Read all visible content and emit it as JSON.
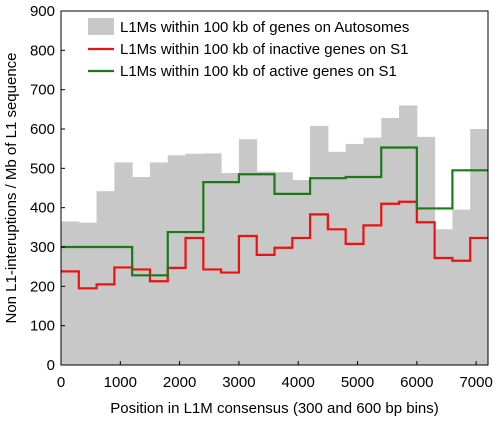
{
  "chart_data": {
    "type": "bar",
    "xlabel": "Position in L1M consensus (300 and 600 bp bins)",
    "ylabel": "Non L1-interuptions / Mb of L1 sequence",
    "xlim": [
      0,
      7200
    ],
    "ylim": [
      0,
      900
    ],
    "xticks": [
      0,
      1000,
      2000,
      3000,
      4000,
      5000,
      6000,
      7000
    ],
    "yticks": [
      0,
      100,
      200,
      300,
      400,
      500,
      600,
      700,
      800,
      900
    ],
    "grid": false,
    "legend_position": "top-left",
    "series": [
      {
        "name": "L1Ms within 100 kb of genes on Autosomes",
        "style": "bar",
        "color": "#c8c8c8",
        "bin_width": 300,
        "x_start": [
          0,
          300,
          600,
          900,
          1200,
          1500,
          1800,
          2100,
          2400,
          2700,
          3000,
          3300,
          3600,
          3900,
          4200,
          4500,
          4800,
          5100,
          5400,
          5700,
          6000,
          6300,
          6600,
          6900
        ],
        "values": [
          365,
          362,
          442,
          515,
          478,
          515,
          533,
          537,
          538,
          488,
          574,
          492,
          490,
          470,
          608,
          542,
          562,
          578,
          628,
          660,
          580,
          345,
          395,
          600
        ]
      },
      {
        "name": "L1Ms within 100 kb of inactive genes on S1",
        "style": "step",
        "color": "#ee1111",
        "bin_width": 300,
        "x_start": [
          0,
          300,
          600,
          900,
          1200,
          1500,
          1800,
          2100,
          2400,
          2700,
          3000,
          3300,
          3600,
          3900,
          4200,
          4500,
          4800,
          5100,
          5400,
          5700,
          6000,
          6300,
          6600,
          6900
        ],
        "values": [
          238,
          195,
          205,
          248,
          243,
          213,
          247,
          323,
          243,
          235,
          328,
          280,
          298,
          323,
          383,
          345,
          308,
          355,
          410,
          415,
          363,
          272,
          265,
          323
        ]
      },
      {
        "name": "L1Ms within 100 kb of active genes on S1",
        "style": "step",
        "color": "#1a7a1a",
        "bin_width": 600,
        "x_start": [
          0,
          600,
          1200,
          1800,
          2400,
          3000,
          3600,
          4200,
          4800,
          5400,
          6000,
          6600
        ],
        "values": [
          300,
          300,
          228,
          338,
          465,
          485,
          435,
          475,
          478,
          553,
          398,
          495
        ]
      }
    ]
  }
}
